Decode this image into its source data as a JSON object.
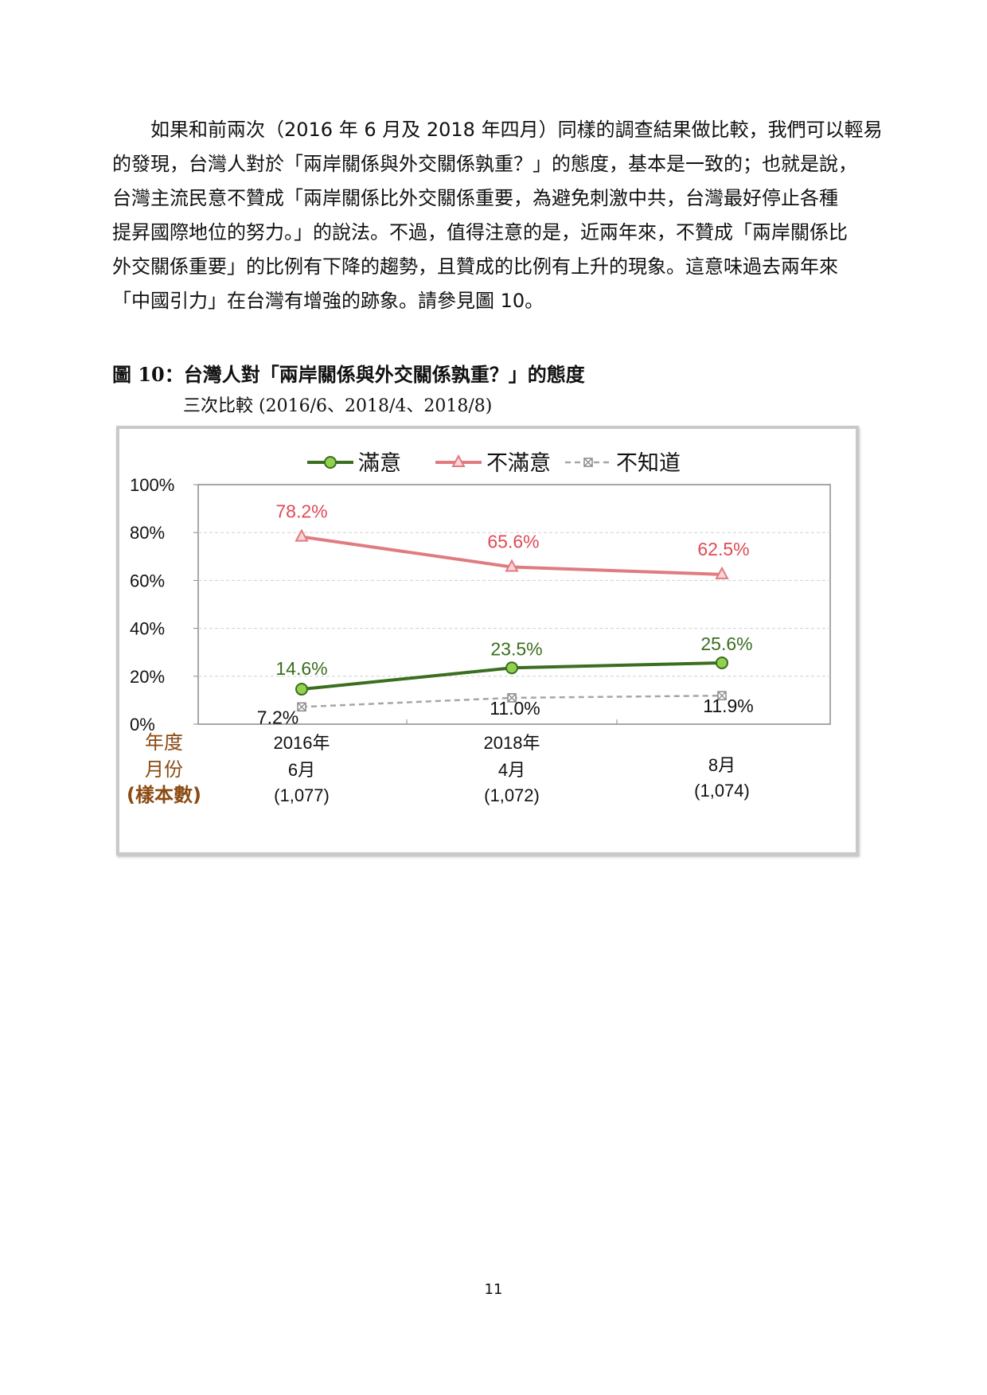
{
  "paragraph": {
    "lines": [
      "　　如果和前兩次（2016 年 6 月及 2018 年四月）同樣的調查結果做比較，我們可以輕易",
      "的發現，台灣人對於「兩岸關係與外交關係孰重？」的態度，基本是一致的；也就是說，",
      "台灣主流民意不贊成「兩岸關係比外交關係重要，為避免刺激中共，台灣最好停止各種",
      "提昇國際地位的努力。」的說法。不過，值得注意的是，近兩年來，不贊成「兩岸關係比",
      "外交關係重要」的比例有下降的趨勢，且贊成的比例有上升的現象。這意味過去兩年來",
      "「中國引力」在台灣有增強的跡象。請參見圖 10。"
    ]
  },
  "figure": {
    "title": "圖 10：台灣人對「兩岸關係與外交關係孰重？」的態度",
    "subtitle": "三次比較  (2016/6、2018/4、2018/8)"
  },
  "chart_data": {
    "type": "line",
    "title": "",
    "xlabel": "",
    "ylabel": "",
    "ylim": [
      0,
      100
    ],
    "yticks": [
      "0%",
      "20%",
      "40%",
      "60%",
      "80%",
      "100%"
    ],
    "grid": true,
    "legend_position": "top",
    "row_labels": [
      "年度",
      "月份",
      "(樣本數)"
    ],
    "categories": [
      {
        "year": "2016年",
        "month": "6月",
        "sample": "(1,077)"
      },
      {
        "year": "2018年",
        "month": "4月",
        "sample": "(1,072)"
      },
      {
        "year": "",
        "month": "8月",
        "sample": "(1,074)"
      }
    ],
    "series": [
      {
        "name": "滿意",
        "color": "#3b6e1e",
        "marker": "circle",
        "values": [
          14.6,
          23.5,
          25.6
        ],
        "labels": [
          "14.6%",
          "23.5%",
          "25.6%"
        ]
      },
      {
        "name": "不滿意",
        "color": "#e07b80",
        "marker": "triangle",
        "values": [
          78.2,
          65.6,
          62.5
        ],
        "labels": [
          "78.2%",
          "65.6%",
          "62.5%"
        ]
      },
      {
        "name": "不知道",
        "color": "#a6a6a6",
        "marker": "square-x",
        "values": [
          7.2,
          11.0,
          11.9
        ],
        "labels": [
          "7.2%",
          "11.0%",
          "11.9%"
        ]
      }
    ]
  },
  "page": {
    "number": "11"
  }
}
